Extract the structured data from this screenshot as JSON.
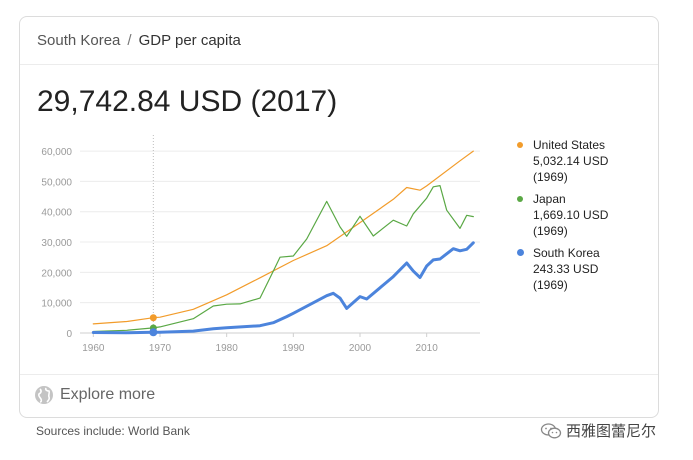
{
  "breadcrumb": {
    "country": "South Korea",
    "separator": "/",
    "metric": "GDP per capita"
  },
  "headline_value": "29,742.84 USD (2017)",
  "explore": {
    "label": "Explore more",
    "icon": "globe-icon"
  },
  "sources": "Sources include: World Bank",
  "watermark": {
    "text": "西雅图蕾尼尔",
    "icon": "wechat-icon"
  },
  "chart_data": {
    "type": "line",
    "title": "",
    "xlabel": "",
    "ylabel": "",
    "xlim": [
      1958,
      2018
    ],
    "ylim": [
      0,
      62000
    ],
    "x_ticks": [
      "1960",
      "1970",
      "1980",
      "1990",
      "2000",
      "2010"
    ],
    "y_ticks": [
      "0",
      "10,000",
      "20,000",
      "30,000",
      "40,000",
      "50,000",
      "60,000"
    ],
    "grid": true,
    "legend_position": "right",
    "hover_year": 1969,
    "series": [
      {
        "name": "United States",
        "color": "#f29c2b",
        "legend_value": "5,032.14 USD",
        "legend_year": "(1969)",
        "x": [
          1960,
          1965,
          1969,
          1970,
          1975,
          1980,
          1985,
          1990,
          1995,
          2000,
          2005,
          2007,
          2009,
          2010,
          2015,
          2017
        ],
        "values": [
          3000,
          3800,
          5032,
          5200,
          7800,
          12600,
          18200,
          23900,
          28800,
          36400,
          44100,
          48000,
          47100,
          48500,
          56800,
          60000
        ]
      },
      {
        "name": "Japan",
        "color": "#5aa845",
        "legend_value": "1,669.10 USD",
        "legend_year": "(1969)",
        "x": [
          1960,
          1965,
          1969,
          1970,
          1975,
          1978,
          1980,
          1982,
          1985,
          1987,
          1988,
          1990,
          1992,
          1995,
          1997,
          1998,
          2000,
          2002,
          2005,
          2007,
          2008,
          2010,
          2011,
          2012,
          2013,
          2015,
          2016,
          2017
        ],
        "values": [
          500,
          900,
          1669,
          2000,
          4700,
          8900,
          9500,
          9600,
          11500,
          20400,
          25000,
          25400,
          31000,
          43400,
          35000,
          31900,
          38500,
          32000,
          37200,
          35300,
          39300,
          44500,
          48200,
          48600,
          40500,
          34500,
          38800,
          38400
        ]
      },
      {
        "name": "South Korea",
        "color": "#4c84dc",
        "legend_value": "243.33 USD",
        "legend_year": "(1969)",
        "x": [
          1960,
          1965,
          1969,
          1970,
          1975,
          1978,
          1980,
          1985,
          1987,
          1989,
          1990,
          1995,
          1996,
          1997,
          1998,
          2000,
          2001,
          2005,
          2007,
          2008,
          2009,
          2010,
          2011,
          2012,
          2014,
          2015,
          2016,
          2017
        ],
        "values": [
          160,
          110,
          243,
          280,
          620,
          1400,
          1700,
          2400,
          3400,
          5400,
          6500,
          12300,
          13100,
          11500,
          8100,
          12000,
          11200,
          18600,
          23100,
          20400,
          18300,
          22100,
          24100,
          24400,
          27800,
          27100,
          27600,
          29743
        ]
      }
    ]
  }
}
